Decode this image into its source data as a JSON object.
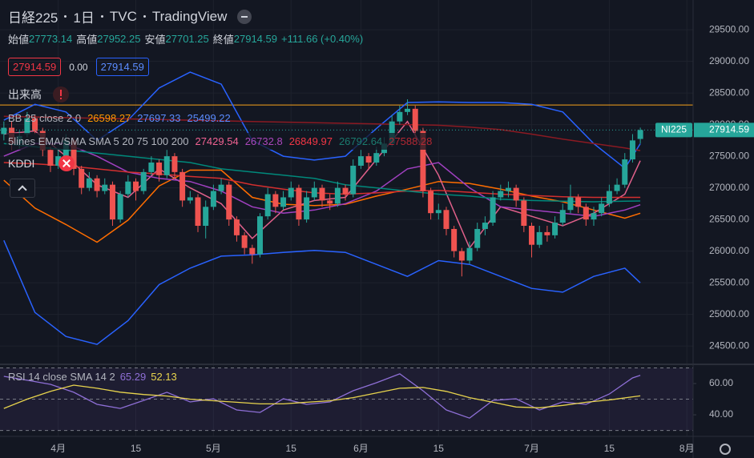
{
  "header": {
    "symbol": "日経225",
    "interval": "1日",
    "exchange": "TVC",
    "source": "TradingView",
    "labels": {
      "open": "始値",
      "high": "高値",
      "low": "安値",
      "close": "終値"
    },
    "change": "+111.66 (+0.40%)",
    "spread": {
      "value": 0,
      "label": "0.00"
    },
    "volume_label": "出来高",
    "bb_label": "BB 25 close 2 0",
    "ma_label": "5lines EMA/SMA SMA 5 20 75 100 200",
    "compare_symbol": "KDDI",
    "price_tag": "NI225"
  },
  "chart_data": [
    {
      "type": "candlestick",
      "up_color": "#26a69a",
      "down_color": "#ef5350",
      "xlim": [
        -0.5,
        88.8
      ],
      "ylim": [
        24210,
        29970
      ],
      "yticks": [
        {
          "value": 24500,
          "label": "24500.00"
        },
        {
          "value": 25000,
          "label": "25000.00"
        },
        {
          "value": 25500,
          "label": "25500.00"
        },
        {
          "value": 26000,
          "label": "26000.00"
        },
        {
          "value": 26500,
          "label": "26500.00"
        },
        {
          "value": 27000,
          "label": "27000.00"
        },
        {
          "value": 27500,
          "label": "27500.00"
        },
        {
          "value": 28000,
          "label": "28000.00"
        },
        {
          "value": 28500,
          "label": "28500.00"
        },
        {
          "value": 29000,
          "label": "29000.00"
        },
        {
          "value": 29500,
          "label": "29500.00"
        }
      ],
      "open": [
        27850,
        27950,
        27700,
        27850,
        28100,
        27900,
        27600,
        27350,
        27500,
        27750,
        27300,
        27000,
        27150,
        26950,
        27050,
        26500,
        26900,
        27100,
        26950,
        27250,
        27400,
        27200,
        27500,
        27250,
        26800,
        26850,
        26400,
        26700,
        26950,
        27050,
        26500,
        26250,
        26050,
        25950,
        26550,
        26900,
        26700,
        26850,
        27000,
        26500,
        26850,
        27000,
        26800,
        26750,
        27000,
        26900,
        27350,
        27500,
        27400,
        27550,
        27700,
        28050,
        28200,
        28250,
        27900,
        26950,
        26600,
        26650,
        26350,
        26000,
        25850,
        26050,
        26350,
        26450,
        26850,
        26950,
        27000,
        26800,
        26400,
        26100,
        26300,
        26250,
        26450,
        26650,
        26850,
        26700,
        26500,
        26600,
        26750,
        26950,
        27050,
        27450,
        27773.14
      ],
      "high": [
        28050,
        28050,
        27900,
        28200,
        28150,
        27950,
        27650,
        27600,
        27850,
        27800,
        27350,
        27250,
        27200,
        27150,
        27100,
        26950,
        27200,
        27150,
        27300,
        27500,
        27450,
        27600,
        27550,
        27300,
        26950,
        26900,
        26800,
        27050,
        27150,
        27100,
        26550,
        26300,
        26100,
        26600,
        27000,
        26950,
        26950,
        27100,
        27050,
        26950,
        27100,
        27050,
        26900,
        27100,
        27050,
        27450,
        27600,
        27550,
        27650,
        27800,
        28150,
        28300,
        28400,
        28300,
        27950,
        27000,
        26750,
        26700,
        26400,
        26050,
        26150,
        26450,
        26550,
        26950,
        27050,
        27100,
        27050,
        26850,
        26450,
        26400,
        26400,
        26550,
        26750,
        27050,
        26900,
        26750,
        26700,
        26850,
        27050,
        27150,
        27550,
        27850,
        27952.25
      ],
      "low": [
        27750,
        27600,
        27620,
        27800,
        27850,
        27500,
        27250,
        27300,
        27450,
        27200,
        26900,
        26950,
        26850,
        26900,
        26400,
        26450,
        26850,
        26800,
        26900,
        27200,
        27100,
        27150,
        27150,
        26700,
        26750,
        26300,
        26200,
        26650,
        26900,
        26400,
        26150,
        25950,
        25800,
        25900,
        26500,
        26600,
        26650,
        26800,
        26400,
        26450,
        26800,
        26700,
        26650,
        26700,
        26800,
        26850,
        27300,
        27300,
        27350,
        27500,
        27650,
        28000,
        28150,
        27800,
        26850,
        26500,
        26500,
        26250,
        25900,
        25600,
        25800,
        26000,
        26250,
        26400,
        26800,
        26850,
        26700,
        26300,
        25900,
        26050,
        26150,
        26200,
        26400,
        26600,
        26600,
        26400,
        26400,
        26550,
        26700,
        26900,
        27000,
        27400,
        27701.25
      ],
      "close": [
        27950,
        27700,
        27820,
        28100,
        27900,
        27600,
        27350,
        27500,
        27750,
        27300,
        27000,
        27150,
        26950,
        27050,
        26500,
        26900,
        27100,
        26950,
        27250,
        27400,
        27200,
        27500,
        27250,
        26800,
        26850,
        26400,
        26700,
        26950,
        27050,
        26500,
        26250,
        26050,
        25950,
        26550,
        26900,
        26700,
        26850,
        27000,
        26500,
        26850,
        27000,
        26800,
        26750,
        27000,
        26900,
        27350,
        27500,
        27400,
        27550,
        27700,
        28050,
        28200,
        28250,
        27900,
        26950,
        26600,
        26650,
        26350,
        26000,
        25850,
        26050,
        26350,
        26450,
        26850,
        26950,
        27000,
        26800,
        26400,
        26100,
        26300,
        26250,
        26450,
        26650,
        26850,
        26700,
        26500,
        26600,
        26750,
        26950,
        27050,
        27450,
        27750,
        27914.59
      ],
      "hline": {
        "value": 28310,
        "color": "#f7a21b"
      },
      "overlays": [
        {
          "color": "#2962ff",
          "x": [
            0,
            4,
            8,
            12,
            16,
            20,
            24,
            28,
            32,
            36,
            40,
            44,
            48,
            52,
            56,
            60,
            64,
            68,
            72,
            76,
            80,
            82
          ],
          "values": [
            28070,
            28320,
            28200,
            27750,
            28070,
            28580,
            28830,
            28640,
            27750,
            27500,
            27440,
            27500,
            27940,
            28350,
            28360,
            28350,
            28350,
            28320,
            28200,
            27700,
            27310,
            27697.33
          ]
        },
        {
          "color": "#ff6d00",
          "x": [
            0,
            4,
            8,
            12,
            16,
            20,
            24,
            28,
            32,
            36,
            40,
            44,
            48,
            52,
            56,
            60,
            64,
            68,
            72,
            76,
            80,
            82
          ],
          "values": [
            27120,
            26680,
            26420,
            26140,
            26490,
            27030,
            27280,
            27280,
            26850,
            26740,
            26720,
            26740,
            26870,
            26980,
            27100,
            27070,
            26980,
            26870,
            26780,
            26650,
            26520,
            26598.27
          ]
        },
        {
          "color": "#2962ff",
          "x": [
            0,
            4,
            8,
            12,
            16,
            20,
            24,
            28,
            32,
            36,
            40,
            44,
            48,
            52,
            56,
            60,
            64,
            68,
            72,
            76,
            80,
            82
          ],
          "values": [
            26170,
            25030,
            24650,
            24525,
            24900,
            25470,
            25730,
            25920,
            25940,
            25980,
            26010,
            25980,
            25790,
            25600,
            25850,
            25790,
            25600,
            25410,
            25350,
            25600,
            25730,
            25499.22
          ]
        },
        {
          "color": "#e0608a",
          "x": [
            0,
            4,
            8,
            12,
            16,
            20,
            24,
            28,
            32,
            36,
            40,
            44,
            48,
            52,
            56,
            60,
            64,
            68,
            72,
            76,
            80,
            82
          ],
          "values": [
            27850,
            27900,
            27500,
            27050,
            26850,
            27300,
            27000,
            26750,
            26200,
            26650,
            26800,
            26850,
            27450,
            28050,
            27200,
            26050,
            26700,
            26550,
            26400,
            26600,
            26900,
            27429.54
          ]
        },
        {
          "color": "#a040c0",
          "x": [
            0,
            4,
            8,
            12,
            16,
            20,
            24,
            28,
            32,
            36,
            40,
            44,
            48,
            52,
            56,
            60,
            64,
            68,
            72,
            76,
            80,
            82
          ],
          "values": [
            27500,
            27700,
            27700,
            27500,
            27250,
            27150,
            27100,
            26950,
            26700,
            26600,
            26650,
            26750,
            26950,
            27300,
            27400,
            27000,
            26700,
            26650,
            26600,
            26550,
            26650,
            26732.8
          ]
        },
        {
          "color": "#d32f2f",
          "x": [
            0,
            4,
            8,
            12,
            16,
            20,
            24,
            28,
            32,
            36,
            40,
            44,
            48,
            52,
            56,
            60,
            64,
            68,
            72,
            76,
            80,
            82
          ],
          "values": [
            27400,
            27380,
            27350,
            27300,
            27250,
            27220,
            27180,
            27150,
            27050,
            26980,
            26920,
            26900,
            26920,
            26950,
            26960,
            26930,
            26900,
            26880,
            26860,
            26850,
            26850,
            26849.97
          ]
        },
        {
          "color": "#00897b",
          "x": [
            0,
            4,
            8,
            12,
            16,
            20,
            24,
            28,
            32,
            36,
            40,
            44,
            48,
            52,
            56,
            60,
            64,
            68,
            72,
            76,
            80,
            82
          ],
          "values": [
            27700,
            27650,
            27600,
            27550,
            27500,
            27450,
            27400,
            27300,
            27250,
            27200,
            27150,
            27050,
            27000,
            26950,
            26900,
            26870,
            26820,
            26800,
            26790,
            26780,
            26790,
            26792.64
          ]
        },
        {
          "color": "#8b1a22",
          "x": [
            0,
            4,
            8,
            12,
            16,
            20,
            24,
            28,
            32,
            36,
            40,
            44,
            48,
            52,
            56,
            60,
            64,
            68,
            72,
            76,
            80,
            82
          ],
          "values": [
            28130,
            28120,
            28110,
            28100,
            28090,
            28080,
            28070,
            28060,
            28050,
            28040,
            28030,
            28020,
            28010,
            28000,
            27990,
            27960,
            27920,
            27850,
            27770,
            27700,
            27630,
            27588.28
          ]
        }
      ]
    },
    {
      "type": "line",
      "title": "RSI 14 close SMA 14 2",
      "xlim": [
        -0.5,
        88.8
      ],
      "ylim": [
        26.2,
        72.3
      ],
      "yticks": [
        {
          "value": 40,
          "label": "40.00"
        },
        {
          "value": 60,
          "label": "60.00"
        }
      ],
      "hlines": [
        70,
        50,
        30
      ],
      "band_color": "#7e57c2",
      "xticks": [
        {
          "value": 7,
          "label": "4月"
        },
        {
          "value": 17,
          "label": "15"
        },
        {
          "value": 27,
          "label": "5月"
        },
        {
          "value": 37,
          "label": "15"
        },
        {
          "value": 46,
          "label": "6月"
        },
        {
          "value": 56,
          "label": "15"
        },
        {
          "value": 68,
          "label": "7月"
        },
        {
          "value": 78,
          "label": "15"
        },
        {
          "value": 88,
          "label": "8月"
        }
      ],
      "series": [
        {
          "color": "#8e6fd6",
          "x": [
            0,
            3,
            6,
            9,
            12,
            15,
            18,
            21,
            24,
            27,
            30,
            33,
            36,
            39,
            42,
            45,
            48,
            51,
            54,
            57,
            60,
            63,
            66,
            69,
            72,
            75,
            78,
            81,
            82
          ],
          "values": [
            64.6,
            62.1,
            59.5,
            54.4,
            46.7,
            44.1,
            49.2,
            54.4,
            48.2,
            50.3,
            43.1,
            41.5,
            50.3,
            46.7,
            48.2,
            55.4,
            60.5,
            66.2,
            55.4,
            43.1,
            37.9,
            49.2,
            50.3,
            43.1,
            48.2,
            46.7,
            53.3,
            63.6,
            65.29
          ]
        },
        {
          "color": "#e8d44d",
          "x": [
            0,
            3,
            6,
            9,
            12,
            15,
            18,
            21,
            24,
            27,
            30,
            33,
            36,
            39,
            42,
            45,
            48,
            51,
            54,
            57,
            60,
            63,
            66,
            69,
            72,
            75,
            78,
            81,
            82
          ],
          "values": [
            44.1,
            50,
            55,
            59,
            57,
            54.5,
            53,
            52,
            50,
            49,
            48,
            47,
            47,
            48,
            49,
            51,
            54,
            57,
            57.5,
            55,
            51,
            48,
            45,
            44.5,
            46,
            48,
            49.5,
            51.5,
            52.13
          ]
        }
      ]
    }
  ]
}
